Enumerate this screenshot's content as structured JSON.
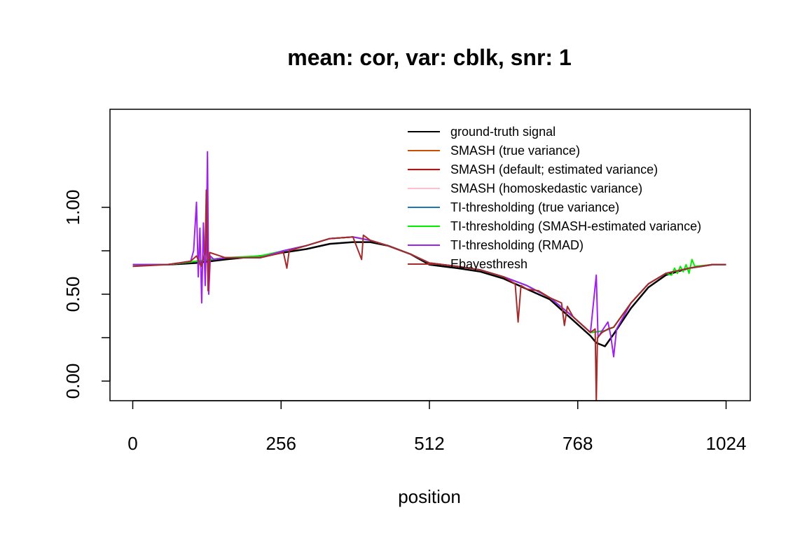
{
  "chart_data": {
    "type": "line",
    "title": "mean: cor, var: cblk, snr: 1",
    "xlabel": "position",
    "ylabel": "",
    "xlim": [
      0,
      1024
    ],
    "ylim": [
      -0.1,
      1.57
    ],
    "xticks": [
      0,
      256,
      512,
      768,
      1024
    ],
    "xtick_labels": [
      "0",
      "256",
      "512",
      "768",
      "1024"
    ],
    "yticks": [
      0.0,
      0.25,
      0.5,
      0.75,
      1.0
    ],
    "ytick_labels": [
      "0.00",
      "",
      "0.50",
      "",
      "1.00"
    ],
    "grid": false,
    "legend_position": "top-right",
    "series": [
      {
        "name": "ground-truth signal",
        "color": "#000000",
        "points": [
          [
            0,
            0.67
          ],
          [
            60,
            0.67
          ],
          [
            110,
            0.68
          ],
          [
            160,
            0.7
          ],
          [
            220,
            0.72
          ],
          [
            260,
            0.74
          ],
          [
            300,
            0.76
          ],
          [
            340,
            0.79
          ],
          [
            380,
            0.8
          ],
          [
            410,
            0.8
          ],
          [
            440,
            0.78
          ],
          [
            480,
            0.73
          ],
          [
            512,
            0.67
          ],
          [
            560,
            0.65
          ],
          [
            600,
            0.63
          ],
          [
            640,
            0.59
          ],
          [
            680,
            0.53
          ],
          [
            720,
            0.47
          ],
          [
            760,
            0.35
          ],
          [
            790,
            0.26
          ],
          [
            800,
            0.22
          ],
          [
            815,
            0.2
          ],
          [
            830,
            0.27
          ],
          [
            860,
            0.42
          ],
          [
            890,
            0.54
          ],
          [
            920,
            0.61
          ],
          [
            960,
            0.65
          ],
          [
            1000,
            0.67
          ],
          [
            1024,
            0.67
          ]
        ]
      },
      {
        "name": "SMASH (true variance)",
        "color": "#cc4c00",
        "points": [
          [
            0,
            0.67
          ],
          [
            60,
            0.67
          ],
          [
            110,
            0.69
          ],
          [
            160,
            0.71
          ],
          [
            220,
            0.71
          ],
          [
            260,
            0.75
          ],
          [
            300,
            0.78
          ],
          [
            340,
            0.82
          ],
          [
            380,
            0.83
          ],
          [
            410,
            0.81
          ],
          [
            440,
            0.78
          ],
          [
            480,
            0.73
          ],
          [
            512,
            0.68
          ],
          [
            560,
            0.66
          ],
          [
            600,
            0.64
          ],
          [
            640,
            0.6
          ],
          [
            680,
            0.55
          ],
          [
            720,
            0.48
          ],
          [
            760,
            0.37
          ],
          [
            790,
            0.28
          ],
          [
            815,
            0.29
          ],
          [
            830,
            0.31
          ],
          [
            860,
            0.45
          ],
          [
            890,
            0.56
          ],
          [
            920,
            0.62
          ],
          [
            960,
            0.65
          ],
          [
            1000,
            0.67
          ],
          [
            1024,
            0.67
          ]
        ]
      },
      {
        "name": "SMASH (default; estimated variance)",
        "color": "#e00000",
        "points": [
          [
            0,
            0.67
          ],
          [
            60,
            0.67
          ],
          [
            110,
            0.69
          ],
          [
            160,
            0.71
          ],
          [
            220,
            0.71
          ],
          [
            260,
            0.75
          ],
          [
            300,
            0.78
          ],
          [
            340,
            0.82
          ],
          [
            380,
            0.83
          ],
          [
            410,
            0.81
          ],
          [
            440,
            0.78
          ],
          [
            480,
            0.73
          ],
          [
            512,
            0.68
          ],
          [
            560,
            0.66
          ],
          [
            600,
            0.64
          ],
          [
            640,
            0.6
          ],
          [
            680,
            0.55
          ],
          [
            720,
            0.48
          ],
          [
            760,
            0.37
          ],
          [
            790,
            0.28
          ],
          [
            815,
            0.29
          ],
          [
            830,
            0.31
          ],
          [
            860,
            0.45
          ],
          [
            890,
            0.56
          ],
          [
            920,
            0.62
          ],
          [
            960,
            0.65
          ],
          [
            1000,
            0.67
          ],
          [
            1024,
            0.67
          ]
        ]
      },
      {
        "name": "SMASH (homoskedastic variance)",
        "color": "#ffc0cb",
        "points": [
          [
            0,
            0.67
          ],
          [
            60,
            0.67
          ],
          [
            110,
            0.69
          ],
          [
            160,
            0.71
          ],
          [
            220,
            0.71
          ],
          [
            260,
            0.75
          ],
          [
            300,
            0.78
          ],
          [
            340,
            0.82
          ],
          [
            380,
            0.83
          ],
          [
            410,
            0.81
          ],
          [
            440,
            0.78
          ],
          [
            480,
            0.73
          ],
          [
            512,
            0.68
          ],
          [
            560,
            0.66
          ],
          [
            600,
            0.64
          ],
          [
            640,
            0.6
          ],
          [
            680,
            0.55
          ],
          [
            720,
            0.48
          ],
          [
            760,
            0.37
          ],
          [
            790,
            0.28
          ],
          [
            815,
            0.29
          ],
          [
            830,
            0.31
          ],
          [
            860,
            0.45
          ],
          [
            890,
            0.56
          ],
          [
            920,
            0.62
          ],
          [
            960,
            0.65
          ],
          [
            1000,
            0.67
          ],
          [
            1024,
            0.67
          ]
        ]
      },
      {
        "name": "TI-thresholding (true variance)",
        "color": "#1f78b4",
        "points": [
          [
            0,
            0.67
          ],
          [
            60,
            0.67
          ],
          [
            110,
            0.69
          ],
          [
            160,
            0.71
          ],
          [
            220,
            0.71
          ],
          [
            260,
            0.75
          ],
          [
            300,
            0.78
          ],
          [
            340,
            0.82
          ],
          [
            380,
            0.83
          ],
          [
            410,
            0.81
          ],
          [
            440,
            0.78
          ],
          [
            480,
            0.73
          ],
          [
            512,
            0.68
          ],
          [
            560,
            0.66
          ],
          [
            600,
            0.64
          ],
          [
            640,
            0.6
          ],
          [
            680,
            0.55
          ],
          [
            720,
            0.48
          ],
          [
            760,
            0.37
          ],
          [
            790,
            0.28
          ],
          [
            815,
            0.29
          ],
          [
            830,
            0.31
          ],
          [
            860,
            0.45
          ],
          [
            890,
            0.56
          ],
          [
            920,
            0.62
          ],
          [
            960,
            0.65
          ],
          [
            1000,
            0.67
          ],
          [
            1024,
            0.67
          ]
        ]
      },
      {
        "name": "TI-thresholding (SMASH-estimated variance)",
        "color": "#00ee00",
        "points": [
          [
            0,
            0.67
          ],
          [
            60,
            0.67
          ],
          [
            110,
            0.69
          ],
          [
            160,
            0.71
          ],
          [
            220,
            0.72
          ],
          [
            260,
            0.75
          ],
          [
            300,
            0.78
          ],
          [
            340,
            0.82
          ],
          [
            380,
            0.83
          ],
          [
            410,
            0.81
          ],
          [
            440,
            0.78
          ],
          [
            480,
            0.73
          ],
          [
            512,
            0.68
          ],
          [
            560,
            0.66
          ],
          [
            600,
            0.64
          ],
          [
            640,
            0.6
          ],
          [
            680,
            0.55
          ],
          [
            720,
            0.48
          ],
          [
            760,
            0.37
          ],
          [
            790,
            0.28
          ],
          [
            815,
            0.29
          ],
          [
            830,
            0.31
          ],
          [
            860,
            0.45
          ],
          [
            890,
            0.56
          ],
          [
            920,
            0.62
          ],
          [
            930,
            0.61
          ],
          [
            935,
            0.65
          ],
          [
            940,
            0.62
          ],
          [
            945,
            0.66
          ],
          [
            950,
            0.63
          ],
          [
            955,
            0.67
          ],
          [
            960,
            0.62
          ],
          [
            965,
            0.7
          ],
          [
            970,
            0.66
          ],
          [
            1000,
            0.67
          ],
          [
            1024,
            0.67
          ]
        ]
      },
      {
        "name": "TI-thresholding (RMAD)",
        "color": "#a020f0",
        "points": [
          [
            0,
            0.67
          ],
          [
            60,
            0.67
          ],
          [
            100,
            0.69
          ],
          [
            105,
            0.75
          ],
          [
            110,
            1.03
          ],
          [
            113,
            0.6
          ],
          [
            116,
            0.88
          ],
          [
            119,
            0.45
          ],
          [
            122,
            0.91
          ],
          [
            125,
            0.55
          ],
          [
            127,
            0.8
          ],
          [
            129,
            1.32
          ],
          [
            131,
            0.5
          ],
          [
            134,
            0.72
          ],
          [
            140,
            0.7
          ],
          [
            160,
            0.71
          ],
          [
            220,
            0.71
          ],
          [
            260,
            0.75
          ],
          [
            300,
            0.78
          ],
          [
            340,
            0.82
          ],
          [
            380,
            0.83
          ],
          [
            410,
            0.81
          ],
          [
            440,
            0.78
          ],
          [
            480,
            0.73
          ],
          [
            512,
            0.68
          ],
          [
            560,
            0.66
          ],
          [
            600,
            0.64
          ],
          [
            640,
            0.6
          ],
          [
            680,
            0.55
          ],
          [
            720,
            0.48
          ],
          [
            760,
            0.37
          ],
          [
            790,
            0.28
          ],
          [
            800,
            0.61
          ],
          [
            803,
            0.25
          ],
          [
            810,
            0.29
          ],
          [
            820,
            0.34
          ],
          [
            825,
            0.26
          ],
          [
            830,
            0.14
          ],
          [
            835,
            0.3
          ],
          [
            860,
            0.45
          ],
          [
            890,
            0.56
          ],
          [
            920,
            0.62
          ],
          [
            960,
            0.65
          ],
          [
            1000,
            0.67
          ],
          [
            1024,
            0.67
          ]
        ]
      },
      {
        "name": "Ebayesthresh",
        "color": "#a52a2a",
        "points": [
          [
            0,
            0.66
          ],
          [
            60,
            0.67
          ],
          [
            100,
            0.69
          ],
          [
            110,
            0.72
          ],
          [
            118,
            0.66
          ],
          [
            125,
            0.74
          ],
          [
            127,
            1.1
          ],
          [
            130,
            0.52
          ],
          [
            133,
            0.74
          ],
          [
            160,
            0.71
          ],
          [
            220,
            0.71
          ],
          [
            260,
            0.74
          ],
          [
            266,
            0.65
          ],
          [
            270,
            0.75
          ],
          [
            300,
            0.78
          ],
          [
            340,
            0.82
          ],
          [
            380,
            0.83
          ],
          [
            395,
            0.7
          ],
          [
            398,
            0.84
          ],
          [
            410,
            0.81
          ],
          [
            440,
            0.78
          ],
          [
            480,
            0.73
          ],
          [
            512,
            0.68
          ],
          [
            560,
            0.66
          ],
          [
            600,
            0.64
          ],
          [
            640,
            0.6
          ],
          [
            660,
            0.56
          ],
          [
            665,
            0.34
          ],
          [
            670,
            0.55
          ],
          [
            680,
            0.53
          ],
          [
            700,
            0.52
          ],
          [
            720,
            0.48
          ],
          [
            740,
            0.45
          ],
          [
            745,
            0.32
          ],
          [
            750,
            0.43
          ],
          [
            760,
            0.37
          ],
          [
            790,
            0.28
          ],
          [
            798,
            0.3
          ],
          [
            800,
            -0.12
          ],
          [
            802,
            0.25
          ],
          [
            810,
            0.28
          ],
          [
            820,
            0.3
          ],
          [
            830,
            0.31
          ],
          [
            860,
            0.45
          ],
          [
            890,
            0.56
          ],
          [
            920,
            0.62
          ],
          [
            960,
            0.65
          ],
          [
            1000,
            0.67
          ],
          [
            1024,
            0.67
          ]
        ]
      }
    ]
  }
}
